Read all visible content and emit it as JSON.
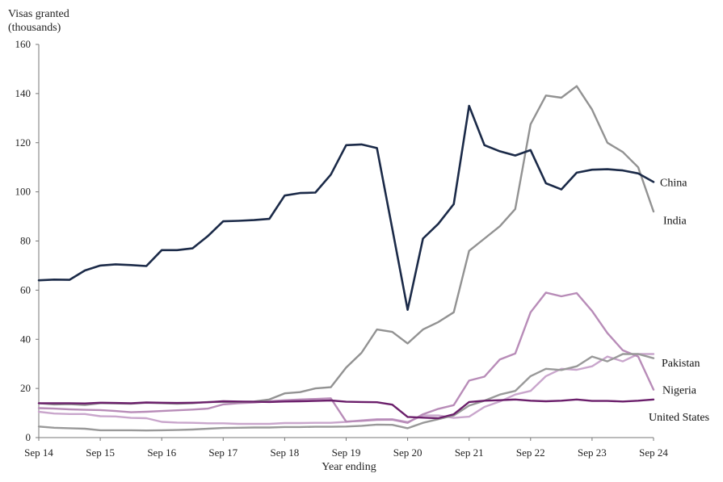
{
  "chart_data": {
    "type": "line",
    "ylabel_lines": [
      "Visas granted",
      "(thousands)"
    ],
    "xlabel": "Year ending",
    "ylim": [
      0,
      160
    ],
    "yticks": [
      0,
      20,
      40,
      60,
      80,
      100,
      120,
      140,
      160
    ],
    "x_tick_labels": [
      "Sep 14",
      "Sep 15",
      "Sep 16",
      "Sep 17",
      "Sep 18",
      "Sep 19",
      "Sep 20",
      "Sep 21",
      "Sep 22",
      "Sep 23",
      "Sep 24"
    ],
    "x": [
      "Sep 14",
      "Dec 14",
      "Mar 15",
      "Jun 15",
      "Sep 15",
      "Dec 15",
      "Mar 16",
      "Jun 16",
      "Sep 16",
      "Dec 16",
      "Mar 17",
      "Jun 17",
      "Sep 17",
      "Dec 17",
      "Mar 18",
      "Jun 18",
      "Sep 18",
      "Dec 18",
      "Mar 19",
      "Jun 19",
      "Sep 19",
      "Dec 19",
      "Mar 20",
      "Jun 20",
      "Sep 20",
      "Dec 20",
      "Mar 21",
      "Jun 21",
      "Sep 21",
      "Dec 21",
      "Mar 22",
      "Jun 22",
      "Sep 22",
      "Dec 22",
      "Mar 23",
      "Jun 23",
      "Sep 23",
      "Dec 23",
      "Mar 24",
      "Jun 24",
      "Sep 24"
    ],
    "grid": false,
    "series": [
      {
        "name": "China",
        "color": "#1b2a48",
        "values": [
          64,
          64.3,
          64.2,
          68,
          70,
          70.5,
          70.2,
          69.8,
          76.3,
          76.3,
          77,
          82,
          88,
          88.2,
          88.5,
          89,
          98.5,
          99.5,
          99.7,
          107,
          119,
          119.3,
          117.8,
          85,
          52,
          81,
          87,
          95,
          135,
          119,
          116.5,
          114.8,
          117,
          103.5,
          101,
          107.8,
          109,
          109.2,
          108.7,
          107.5,
          104
        ]
      },
      {
        "name": "India",
        "color": "#929292",
        "values": [
          14,
          13.5,
          13.6,
          13.3,
          14,
          13.9,
          13.8,
          14.2,
          14,
          13.8,
          14,
          14.5,
          14.5,
          14.5,
          14.7,
          15.5,
          18,
          18.5,
          20,
          20.5,
          28.5,
          34.5,
          44,
          43,
          38.3,
          44,
          47,
          51,
          76,
          81,
          86,
          93,
          127.5,
          139.2,
          138.3,
          143,
          133.5,
          120,
          116.2,
          110,
          92
        ]
      },
      {
        "name": "Pakistan",
        "color": "#999999",
        "values": [
          4.5,
          4,
          3.8,
          3.6,
          3,
          3,
          3,
          2.9,
          3,
          3.1,
          3.3,
          3.6,
          3.9,
          4,
          4.1,
          4.1,
          4.3,
          4.3,
          4.4,
          4.4,
          4.5,
          4.8,
          5.3,
          5.2,
          3.8,
          6,
          7.5,
          9,
          13,
          15,
          17.5,
          19,
          25,
          28,
          27.5,
          29,
          33,
          31,
          34,
          34,
          32.3
        ]
      },
      {
        "name": "Nigeria",
        "color": "#b88cb8",
        "values": [
          12,
          11.8,
          11.5,
          11.3,
          11.2,
          10.8,
          10.3,
          10.5,
          10.8,
          11.1,
          11.4,
          11.8,
          13.5,
          14,
          14.3,
          14.8,
          15.2,
          15.5,
          15.7,
          16,
          6.5,
          6.8,
          7.2,
          7.3,
          6,
          9.5,
          11.7,
          13.2,
          23.2,
          24.8,
          31.8,
          34.2,
          51,
          59,
          57.5,
          58.8,
          51.5,
          42.5,
          35.5,
          33,
          19.5
        ]
      },
      {
        "name": "United States",
        "color": "#6b1f6b",
        "values": [
          14,
          14,
          14,
          13.9,
          14.2,
          14.1,
          14,
          14.3,
          14.2,
          14.1,
          14.2,
          14.4,
          14.8,
          14.7,
          14.6,
          14.5,
          14.7,
          14.8,
          14.9,
          15.1,
          14.6,
          14.5,
          14.4,
          13.4,
          8.4,
          8.1,
          7.9,
          9.5,
          14.5,
          15,
          15.2,
          15.5,
          15,
          14.8,
          15,
          15.5,
          14.9,
          14.9,
          14.7,
          15,
          15.5
        ]
      },
      {
        "name": "",
        "color": "#c9a6cc",
        "values": [
          10.5,
          9.8,
          9.6,
          9.6,
          8.7,
          8.6,
          8,
          7.9,
          6.4,
          6.1,
          6,
          5.8,
          5.8,
          5.6,
          5.6,
          5.6,
          5.9,
          5.9,
          6,
          6,
          6.4,
          7,
          7.5,
          7.5,
          6.3,
          9,
          9,
          8,
          8.5,
          12.5,
          14.7,
          17.5,
          19,
          25,
          28,
          27.6,
          29,
          33,
          31,
          34,
          34
        ]
      }
    ],
    "series_labels": [
      {
        "series": "China",
        "text": "China"
      },
      {
        "series": "India",
        "text": "India"
      },
      {
        "series": "Pakistan",
        "text": "Pakistan"
      },
      {
        "series": "Nigeria",
        "text": "Nigeria"
      },
      {
        "series": "United States",
        "text": "United States"
      }
    ]
  }
}
